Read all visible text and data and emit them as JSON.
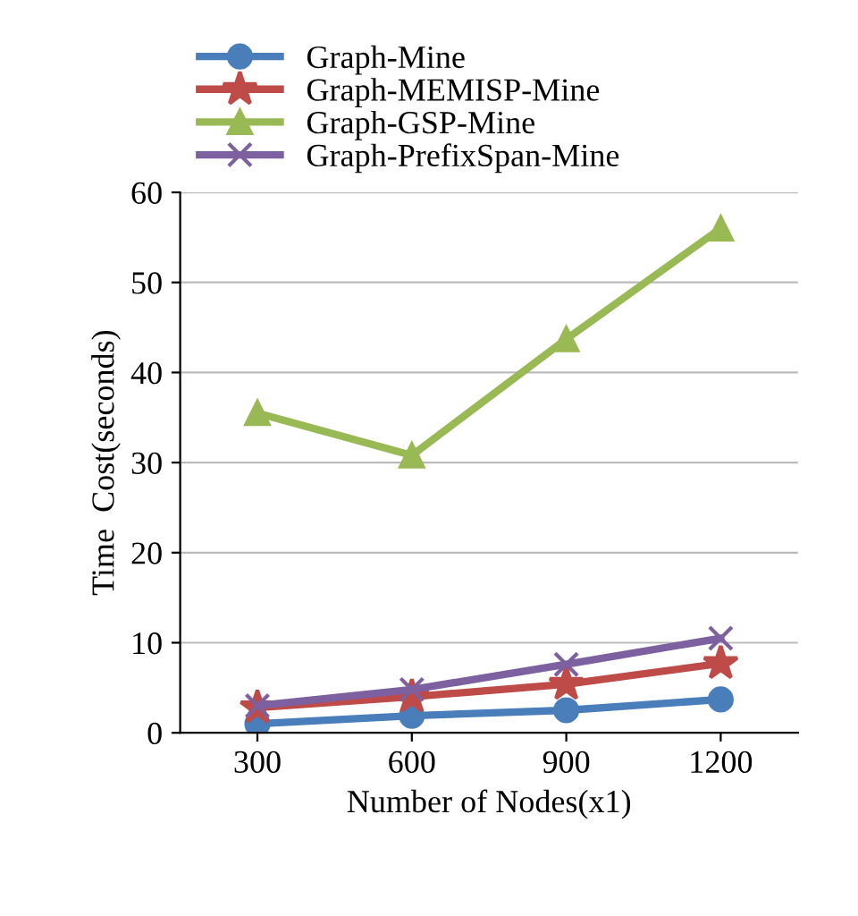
{
  "chart_data": {
    "type": "line",
    "xlabel": "Number of Nodes(x1)",
    "ylabel": "Time  Cost(seconds)",
    "categories": [
      "300",
      "600",
      "900",
      "1200"
    ],
    "series": [
      {
        "name": "Graph-Mine",
        "color": "#4a7ebb",
        "marker": "circle",
        "values": [
          1.0,
          1.9,
          2.5,
          3.7
        ]
      },
      {
        "name": "Graph-MEMISP-Mine",
        "color": "#be4b48",
        "marker": "star",
        "values": [
          2.8,
          4.0,
          5.4,
          7.7
        ]
      },
      {
        "name": "Graph-GSP-Mine",
        "color": "#98b954",
        "marker": "triangle",
        "values": [
          35.5,
          30.8,
          43.7,
          56.0
        ]
      },
      {
        "name": "Graph-PrefixSpan-Mine",
        "color": "#7d60a0",
        "marker": "cross",
        "values": [
          3.0,
          4.8,
          7.6,
          10.5
        ]
      }
    ],
    "ylim": [
      0,
      60
    ],
    "yticks": [
      0,
      10,
      20,
      30,
      40,
      50,
      60
    ],
    "grid": "y",
    "legend": "top",
    "line_style": "solid"
  }
}
